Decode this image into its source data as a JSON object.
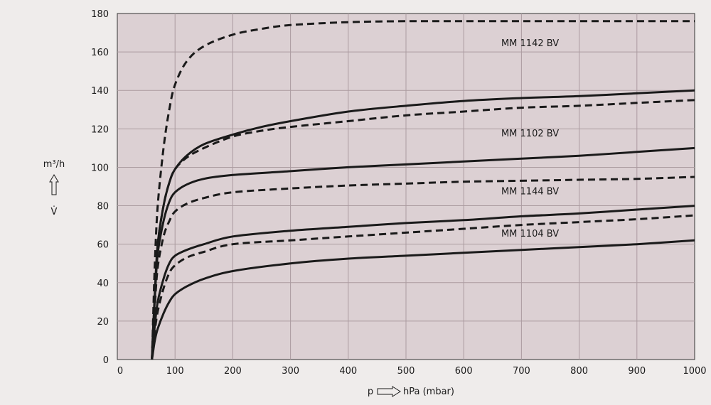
{
  "chart_data": {
    "type": "line",
    "xlabel": "p",
    "xlabel_unit": "hPa (mbar)",
    "ylabel": "m³/h",
    "ylabel_symbol": "V̇",
    "xlim": [
      0,
      1000
    ],
    "ylim": [
      0,
      180
    ],
    "x_ticks": [
      0,
      100,
      200,
      300,
      400,
      500,
      600,
      700,
      800,
      900,
      1000
    ],
    "y_ticks": [
      0,
      20,
      40,
      60,
      80,
      100,
      120,
      140,
      160,
      180
    ],
    "grid": true,
    "colors": {
      "plot_bg": "#dcd0d3",
      "page_bg": "#efeceb",
      "grid": "#ab9ba0",
      "line": "#1a1a1a"
    },
    "labels": [
      {
        "text": "MM 1142 BV",
        "x": 665,
        "y": 163
      },
      {
        "text": "MM 1102 BV",
        "x": 665,
        "y": 116
      },
      {
        "text": "MM 1144 BV",
        "x": 665,
        "y": 86
      },
      {
        "text": "MM 1104 BV",
        "x": 665,
        "y": 64
      }
    ],
    "series": [
      {
        "style": "dashed",
        "points": [
          [
            60,
            0
          ],
          [
            62,
            20
          ],
          [
            65,
            50
          ],
          [
            70,
            80
          ],
          [
            80,
            110
          ],
          [
            90,
            130
          ],
          [
            100,
            143
          ],
          [
            120,
            155
          ],
          [
            150,
            163
          ],
          [
            200,
            169
          ],
          [
            250,
            172
          ],
          [
            300,
            174
          ],
          [
            400,
            175.5
          ],
          [
            500,
            176
          ],
          [
            600,
            176
          ],
          [
            700,
            176
          ],
          [
            800,
            176
          ],
          [
            900,
            176
          ],
          [
            1000,
            176
          ]
        ]
      },
      {
        "style": "solid",
        "points": [
          [
            60,
            0
          ],
          [
            62,
            15
          ],
          [
            65,
            35
          ],
          [
            70,
            60
          ],
          [
            80,
            80
          ],
          [
            90,
            92
          ],
          [
            100,
            99
          ],
          [
            120,
            106
          ],
          [
            150,
            112
          ],
          [
            200,
            117
          ],
          [
            250,
            121
          ],
          [
            300,
            124
          ],
          [
            400,
            129
          ],
          [
            500,
            132
          ],
          [
            600,
            134.5
          ],
          [
            700,
            136
          ],
          [
            800,
            137
          ],
          [
            900,
            138.5
          ],
          [
            1000,
            140
          ]
        ]
      },
      {
        "style": "dashed",
        "points": [
          [
            60,
            0
          ],
          [
            62,
            15
          ],
          [
            65,
            35
          ],
          [
            70,
            60
          ],
          [
            80,
            80
          ],
          [
            90,
            92
          ],
          [
            100,
            99
          ],
          [
            120,
            105
          ],
          [
            150,
            110
          ],
          [
            200,
            116
          ],
          [
            250,
            119
          ],
          [
            300,
            121
          ],
          [
            400,
            124
          ],
          [
            500,
            127
          ],
          [
            600,
            129
          ],
          [
            700,
            131
          ],
          [
            800,
            132
          ],
          [
            900,
            133.5
          ],
          [
            1000,
            135
          ]
        ]
      },
      {
        "style": "solid",
        "points": [
          [
            60,
            0
          ],
          [
            62,
            15
          ],
          [
            65,
            32
          ],
          [
            70,
            55
          ],
          [
            80,
            72
          ],
          [
            90,
            82
          ],
          [
            100,
            87
          ],
          [
            120,
            91
          ],
          [
            150,
            94
          ],
          [
            200,
            96
          ],
          [
            300,
            98
          ],
          [
            400,
            100
          ],
          [
            500,
            101.5
          ],
          [
            600,
            103
          ],
          [
            700,
            104.5
          ],
          [
            800,
            106
          ],
          [
            900,
            108
          ],
          [
            1000,
            110
          ]
        ]
      },
      {
        "style": "dashed",
        "points": [
          [
            60,
            0
          ],
          [
            62,
            12
          ],
          [
            65,
            28
          ],
          [
            70,
            48
          ],
          [
            80,
            64
          ],
          [
            90,
            72
          ],
          [
            100,
            77
          ],
          [
            120,
            81
          ],
          [
            150,
            84
          ],
          [
            200,
            87
          ],
          [
            300,
            89
          ],
          [
            400,
            90.5
          ],
          [
            500,
            91.5
          ],
          [
            600,
            92.5
          ],
          [
            700,
            93
          ],
          [
            800,
            93.5
          ],
          [
            900,
            94
          ],
          [
            1000,
            95
          ]
        ]
      },
      {
        "style": "solid",
        "points": [
          [
            60,
            0
          ],
          [
            62,
            8
          ],
          [
            65,
            18
          ],
          [
            70,
            30
          ],
          [
            80,
            42
          ],
          [
            90,
            50
          ],
          [
            100,
            54
          ],
          [
            120,
            57
          ],
          [
            150,
            60
          ],
          [
            200,
            64
          ],
          [
            300,
            67
          ],
          [
            400,
            69
          ],
          [
            500,
            71
          ],
          [
            600,
            72.5
          ],
          [
            700,
            74.5
          ],
          [
            800,
            76
          ],
          [
            900,
            78
          ],
          [
            1000,
            80
          ]
        ]
      },
      {
        "style": "dashed",
        "points": [
          [
            60,
            0
          ],
          [
            62,
            7
          ],
          [
            65,
            15
          ],
          [
            70,
            25
          ],
          [
            80,
            37
          ],
          [
            90,
            45
          ],
          [
            100,
            49
          ],
          [
            120,
            53
          ],
          [
            150,
            56
          ],
          [
            200,
            60
          ],
          [
            300,
            62
          ],
          [
            400,
            64
          ],
          [
            500,
            66
          ],
          [
            600,
            68
          ],
          [
            700,
            70
          ],
          [
            800,
            71.5
          ],
          [
            900,
            73
          ],
          [
            1000,
            75
          ]
        ]
      },
      {
        "style": "solid",
        "points": [
          [
            60,
            0
          ],
          [
            62,
            4
          ],
          [
            65,
            10
          ],
          [
            70,
            16
          ],
          [
            80,
            24
          ],
          [
            90,
            30
          ],
          [
            100,
            34
          ],
          [
            120,
            38
          ],
          [
            150,
            42
          ],
          [
            200,
            46
          ],
          [
            300,
            50
          ],
          [
            400,
            52.5
          ],
          [
            500,
            54
          ],
          [
            600,
            55.5
          ],
          [
            700,
            57
          ],
          [
            800,
            58.5
          ],
          [
            900,
            60
          ],
          [
            1000,
            62
          ]
        ]
      }
    ]
  }
}
